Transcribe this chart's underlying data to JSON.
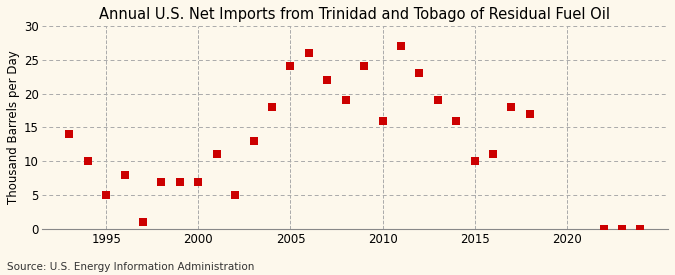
{
  "title": "Annual U.S. Net Imports from Trinidad and Tobago of Residual Fuel Oil",
  "ylabel": "Thousand Barrels per Day",
  "source": "Source: U.S. Energy Information Administration",
  "years": [
    1993,
    1994,
    1995,
    1996,
    1997,
    1998,
    1999,
    2000,
    2001,
    2002,
    2003,
    2004,
    2005,
    2006,
    2007,
    2008,
    2009,
    2010,
    2011,
    2012,
    2013,
    2014,
    2015,
    2016,
    2017,
    2018,
    2022,
    2023,
    2024
  ],
  "values": [
    14,
    10,
    5,
    8,
    1,
    7,
    7,
    7,
    11,
    5,
    13,
    18,
    24,
    26,
    22,
    19,
    24,
    16,
    27,
    23,
    19,
    16,
    10,
    11,
    18,
    17,
    0,
    0,
    0
  ],
  "marker_color": "#cc0000",
  "marker_size": 28,
  "bg_color": "#fdf8ec",
  "grid_color": "#aaaaaa",
  "ylim": [
    0,
    30
  ],
  "yticks": [
    0,
    5,
    10,
    15,
    20,
    25,
    30
  ],
  "xticks": [
    1995,
    2000,
    2005,
    2010,
    2015,
    2020
  ],
  "xlim": [
    1991.5,
    2025.5
  ],
  "title_fontsize": 10.5,
  "label_fontsize": 8.5,
  "tick_fontsize": 8.5,
  "source_fontsize": 7.5
}
